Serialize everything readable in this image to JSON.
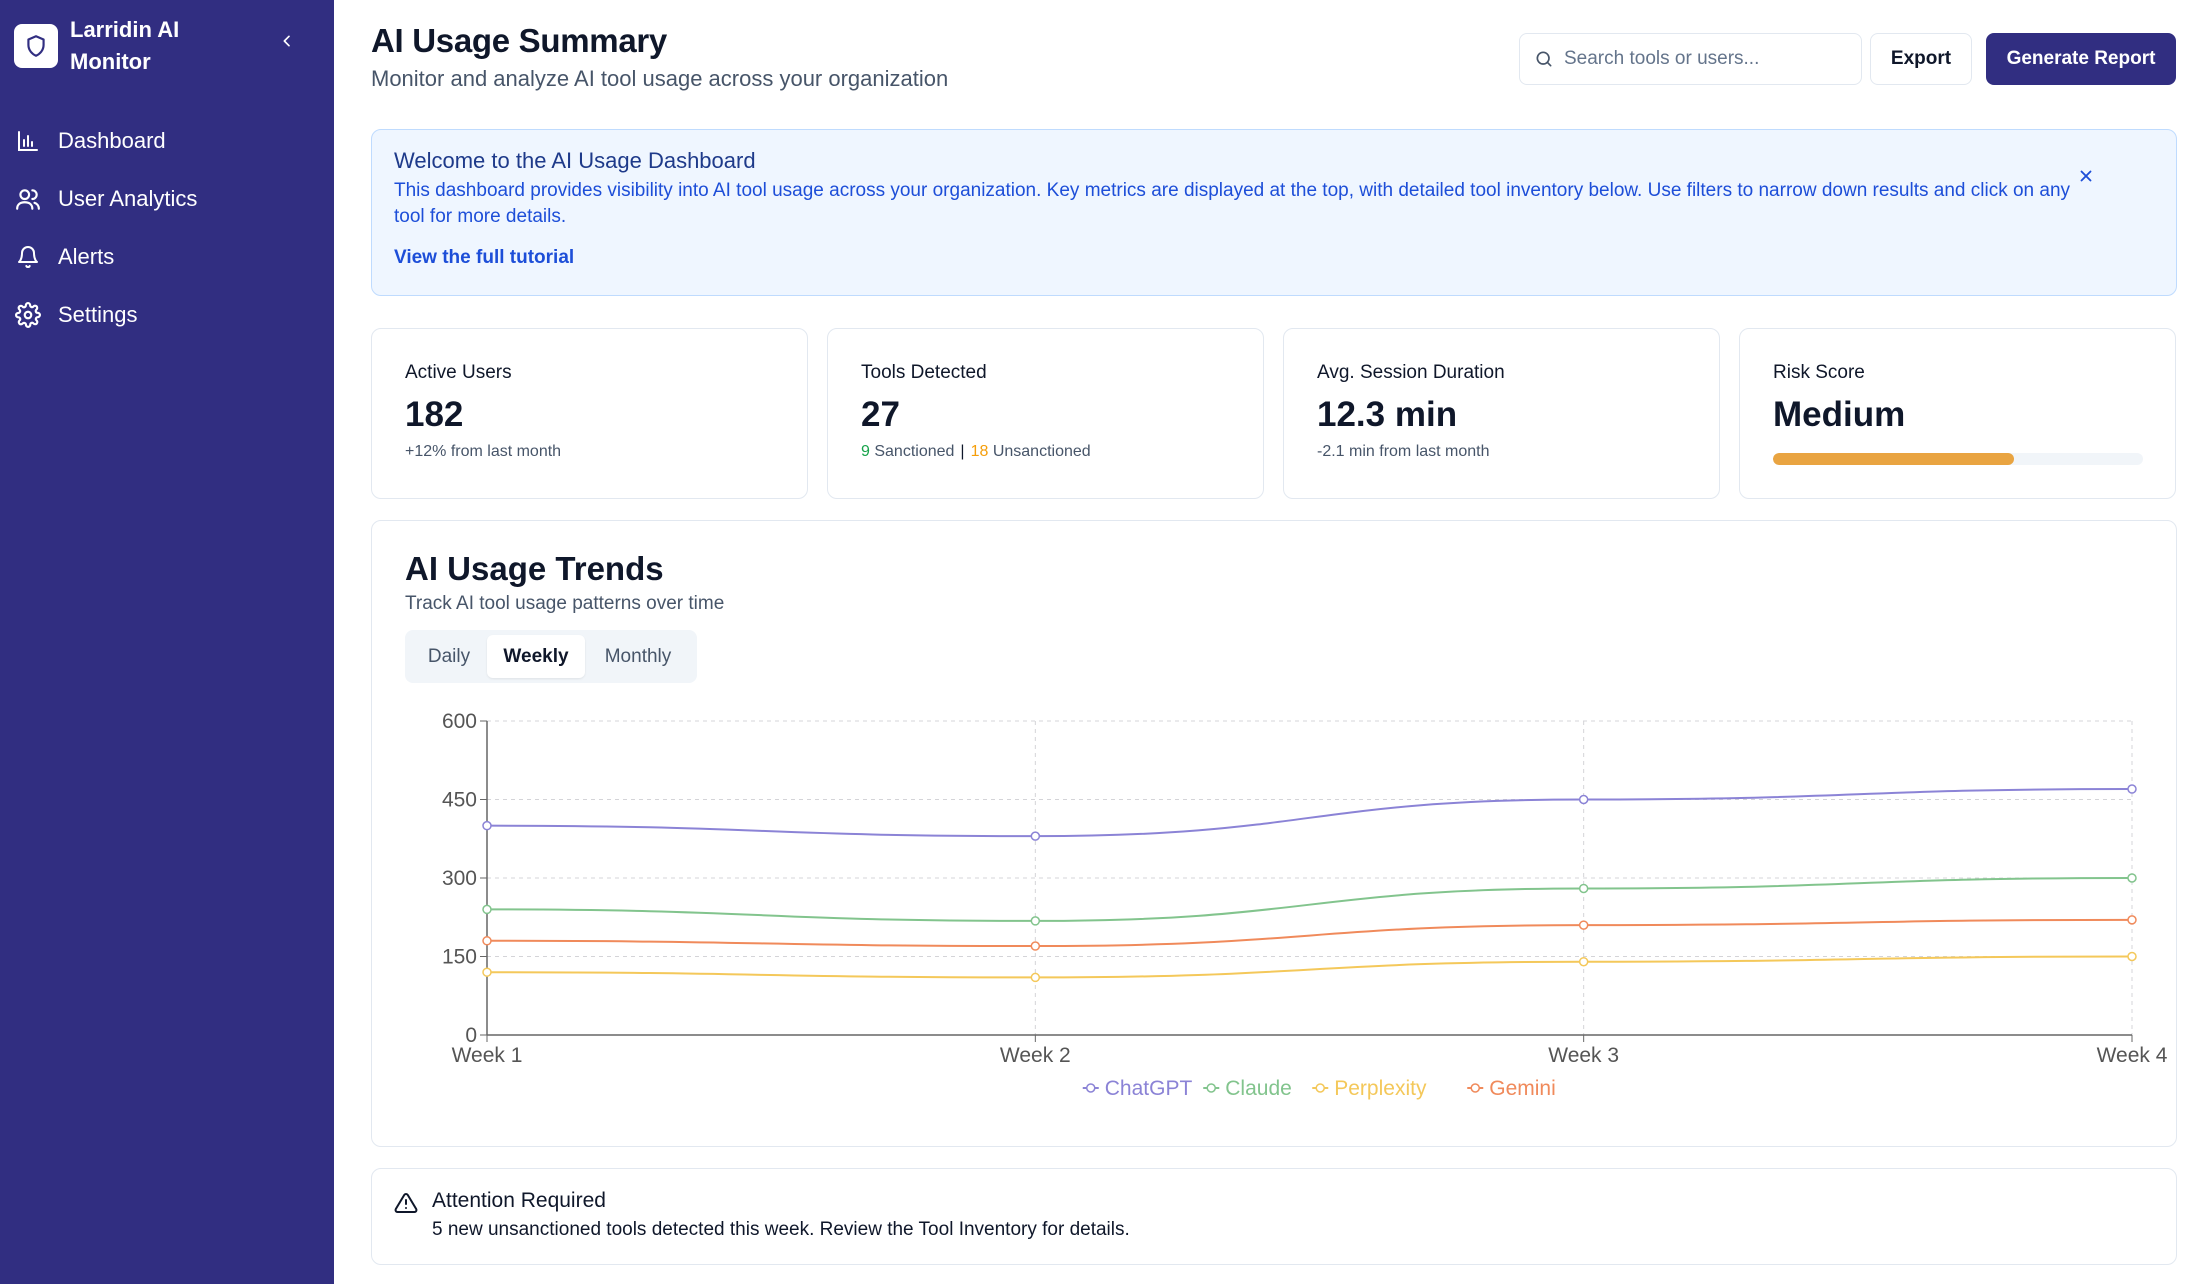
{
  "app": {
    "name": "Larridin AI Monitor"
  },
  "sidebar": {
    "items": [
      {
        "label": "Dashboard",
        "icon": "bar-chart-icon"
      },
      {
        "label": "User Analytics",
        "icon": "users-icon"
      },
      {
        "label": "Alerts",
        "icon": "bell-icon"
      },
      {
        "label": "Settings",
        "icon": "gear-icon"
      }
    ]
  },
  "header": {
    "title": "AI Usage Summary",
    "subtitle": "Monitor and analyze AI tool usage across your organization",
    "search_placeholder": "Search tools or users...",
    "export_label": "Export",
    "report_label": "Generate Report"
  },
  "banner": {
    "title": "Welcome to the AI Usage Dashboard",
    "text": "This dashboard provides visibility into AI tool usage across your organization. Key metrics are displayed at the top, with detailed tool inventory below. Use filters to narrow down results and click on any tool for more details.",
    "link": "View the full tutorial"
  },
  "metrics": {
    "active_users": {
      "label": "Active Users",
      "value": "182",
      "sub": "+12% from last month"
    },
    "tools_detected": {
      "label": "Tools Detected",
      "value": "27",
      "sanctioned_count": "9",
      "sanctioned_label": "Sanctioned",
      "separator": "|",
      "unsanctioned_count": "18",
      "unsanctioned_label": "Unsanctioned"
    },
    "session_duration": {
      "label": "Avg. Session Duration",
      "value": "12.3 min",
      "sub": "-2.1 min from last month"
    },
    "risk_score": {
      "label": "Risk Score",
      "value": "Medium",
      "level": 0.65,
      "color": "#e9a441"
    }
  },
  "trends": {
    "title": "AI Usage Trends",
    "subtitle": "Track AI tool usage patterns over time",
    "tabs": [
      "Daily",
      "Weekly",
      "Monthly"
    ],
    "active_tab": "Weekly"
  },
  "chart_data": {
    "type": "line",
    "x": [
      "Week 1",
      "Week 2",
      "Week 3",
      "Week 4"
    ],
    "ylim": [
      0,
      600
    ],
    "yticks": [
      "0",
      "150",
      "300",
      "450",
      "600"
    ],
    "grid": true,
    "legend": "bottom",
    "series": [
      {
        "name": "ChatGPT",
        "color": "#8b83d6",
        "values": [
          400,
          380,
          450,
          470
        ]
      },
      {
        "name": "Claude",
        "color": "#82c48d",
        "values": [
          240,
          218,
          280,
          300
        ]
      },
      {
        "name": "Perplexity",
        "color": "#f4c85a",
        "values": [
          120,
          110,
          140,
          150
        ]
      },
      {
        "name": "Gemini",
        "color": "#f08a5b",
        "values": [
          180,
          170,
          210,
          220
        ]
      }
    ]
  },
  "attention": {
    "title": "Attention Required",
    "text": "5 new unsanctioned tools detected this week. Review the Tool Inventory for details."
  }
}
